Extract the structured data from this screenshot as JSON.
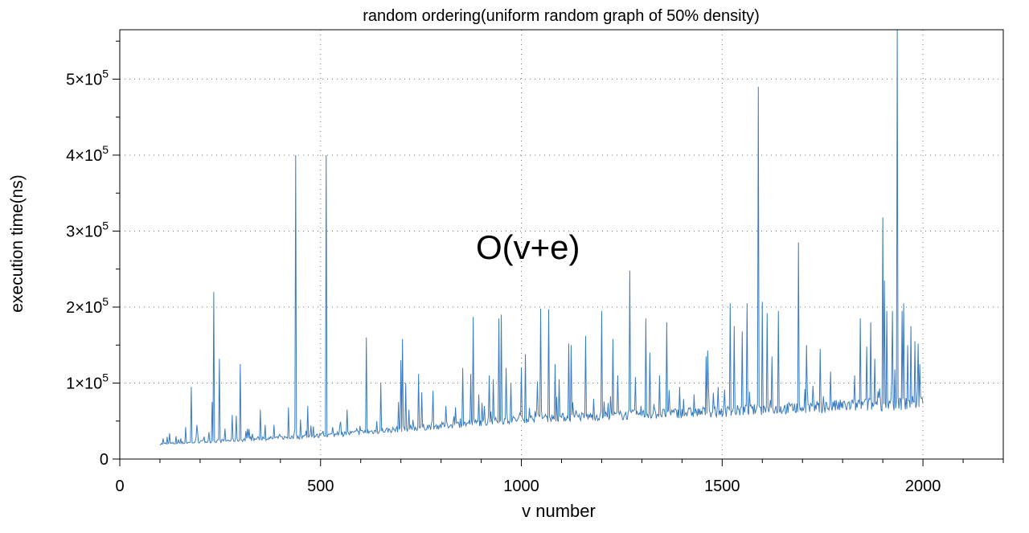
{
  "chart_data": {
    "type": "line",
    "title": "random ordering(uniform random graph of 50% density)",
    "xlabel": "v number",
    "ylabel": "execution time(ns)",
    "annotation": "O(v+e)",
    "xlim": [
      0,
      2200
    ],
    "ylim": [
      0,
      565000
    ],
    "x_ticks": [
      0,
      500,
      1000,
      1500,
      2000
    ],
    "x_tick_labels": [
      "0",
      "500",
      "1000",
      "1500",
      "2000"
    ],
    "y_ticks": [
      0,
      100000,
      200000,
      300000,
      400000,
      500000
    ],
    "y_tick_labels": [
      {
        "mantissa": "0",
        "exp": ""
      },
      {
        "mantissa": "1×10",
        "exp": "5"
      },
      {
        "mantissa": "2×10",
        "exp": "5"
      },
      {
        "mantissa": "3×10",
        "exp": "5"
      },
      {
        "mantissa": "4×10",
        "exp": "5"
      },
      {
        "mantissa": "5×10",
        "exp": "5"
      }
    ],
    "grid": true,
    "legend": "none",
    "series_color": "#3a7bbf",
    "baseline": [
      [
        100,
        19000
      ],
      [
        500,
        29000
      ],
      [
        1000,
        50000
      ],
      [
        1500,
        59000
      ],
      [
        2000,
        70000
      ]
    ],
    "spikes": [
      [
        109,
        27000
      ],
      [
        125,
        34000
      ],
      [
        140,
        30000
      ],
      [
        165,
        42000
      ],
      [
        178,
        95000
      ],
      [
        192,
        45000
      ],
      [
        230,
        75000
      ],
      [
        235,
        220000
      ],
      [
        248,
        132000
      ],
      [
        262,
        40000
      ],
      [
        280,
        58000
      ],
      [
        290,
        57000
      ],
      [
        300,
        125000
      ],
      [
        318,
        40000
      ],
      [
        350,
        65000
      ],
      [
        362,
        45000
      ],
      [
        385,
        45000
      ],
      [
        420,
        68000
      ],
      [
        438,
        400000
      ],
      [
        450,
        52000
      ],
      [
        468,
        70000
      ],
      [
        482,
        43000
      ],
      [
        515,
        400000
      ],
      [
        530,
        42000
      ],
      [
        566,
        65000
      ],
      [
        590,
        40000
      ],
      [
        615,
        160000
      ],
      [
        640,
        50000
      ],
      [
        650,
        100000
      ],
      [
        695,
        75000
      ],
      [
        700,
        130000
      ],
      [
        705,
        158000
      ],
      [
        712,
        100000
      ],
      [
        720,
        65000
      ],
      [
        745,
        112000
      ],
      [
        752,
        88000
      ],
      [
        780,
        90000
      ],
      [
        812,
        70000
      ],
      [
        855,
        120000
      ],
      [
        875,
        112000
      ],
      [
        880,
        187000
      ],
      [
        895,
        85000
      ],
      [
        920,
        110000
      ],
      [
        930,
        105000
      ],
      [
        945,
        185000
      ],
      [
        950,
        190000
      ],
      [
        962,
        120000
      ],
      [
        975,
        100000
      ],
      [
        1000,
        120000
      ],
      [
        1010,
        138000
      ],
      [
        1040,
        102000
      ],
      [
        1048,
        198000
      ],
      [
        1068,
        197000
      ],
      [
        1085,
        125000
      ],
      [
        1095,
        105000
      ],
      [
        1118,
        152000
      ],
      [
        1125,
        150000
      ],
      [
        1160,
        162000
      ],
      [
        1200,
        195000
      ],
      [
        1228,
        158000
      ],
      [
        1240,
        110000
      ],
      [
        1270,
        248000
      ],
      [
        1285,
        108000
      ],
      [
        1310,
        185000
      ],
      [
        1320,
        140000
      ],
      [
        1345,
        110000
      ],
      [
        1362,
        180000
      ],
      [
        1395,
        95000
      ],
      [
        1430,
        85000
      ],
      [
        1460,
        135000
      ],
      [
        1465,
        143000
      ],
      [
        1490,
        95000
      ],
      [
        1520,
        205000
      ],
      [
        1530,
        175000
      ],
      [
        1550,
        168000
      ],
      [
        1562,
        205000
      ],
      [
        1590,
        490000
      ],
      [
        1600,
        207000
      ],
      [
        1612,
        192000
      ],
      [
        1625,
        135000
      ],
      [
        1640,
        195000
      ],
      [
        1690,
        285000
      ],
      [
        1710,
        150000
      ],
      [
        1745,
        145000
      ],
      [
        1770,
        115000
      ],
      [
        1830,
        110000
      ],
      [
        1845,
        185000
      ],
      [
        1860,
        148000
      ],
      [
        1870,
        180000
      ],
      [
        1880,
        132000
      ],
      [
        1900,
        318000
      ],
      [
        1905,
        235000
      ],
      [
        1910,
        195000
      ],
      [
        1925,
        195000
      ],
      [
        1930,
        118000
      ],
      [
        1937,
        565000
      ],
      [
        1948,
        195000
      ],
      [
        1952,
        205000
      ],
      [
        1962,
        150000
      ],
      [
        1970,
        175000
      ],
      [
        1980,
        155000
      ],
      [
        1988,
        152000
      ],
      [
        1993,
        125000
      ]
    ]
  }
}
